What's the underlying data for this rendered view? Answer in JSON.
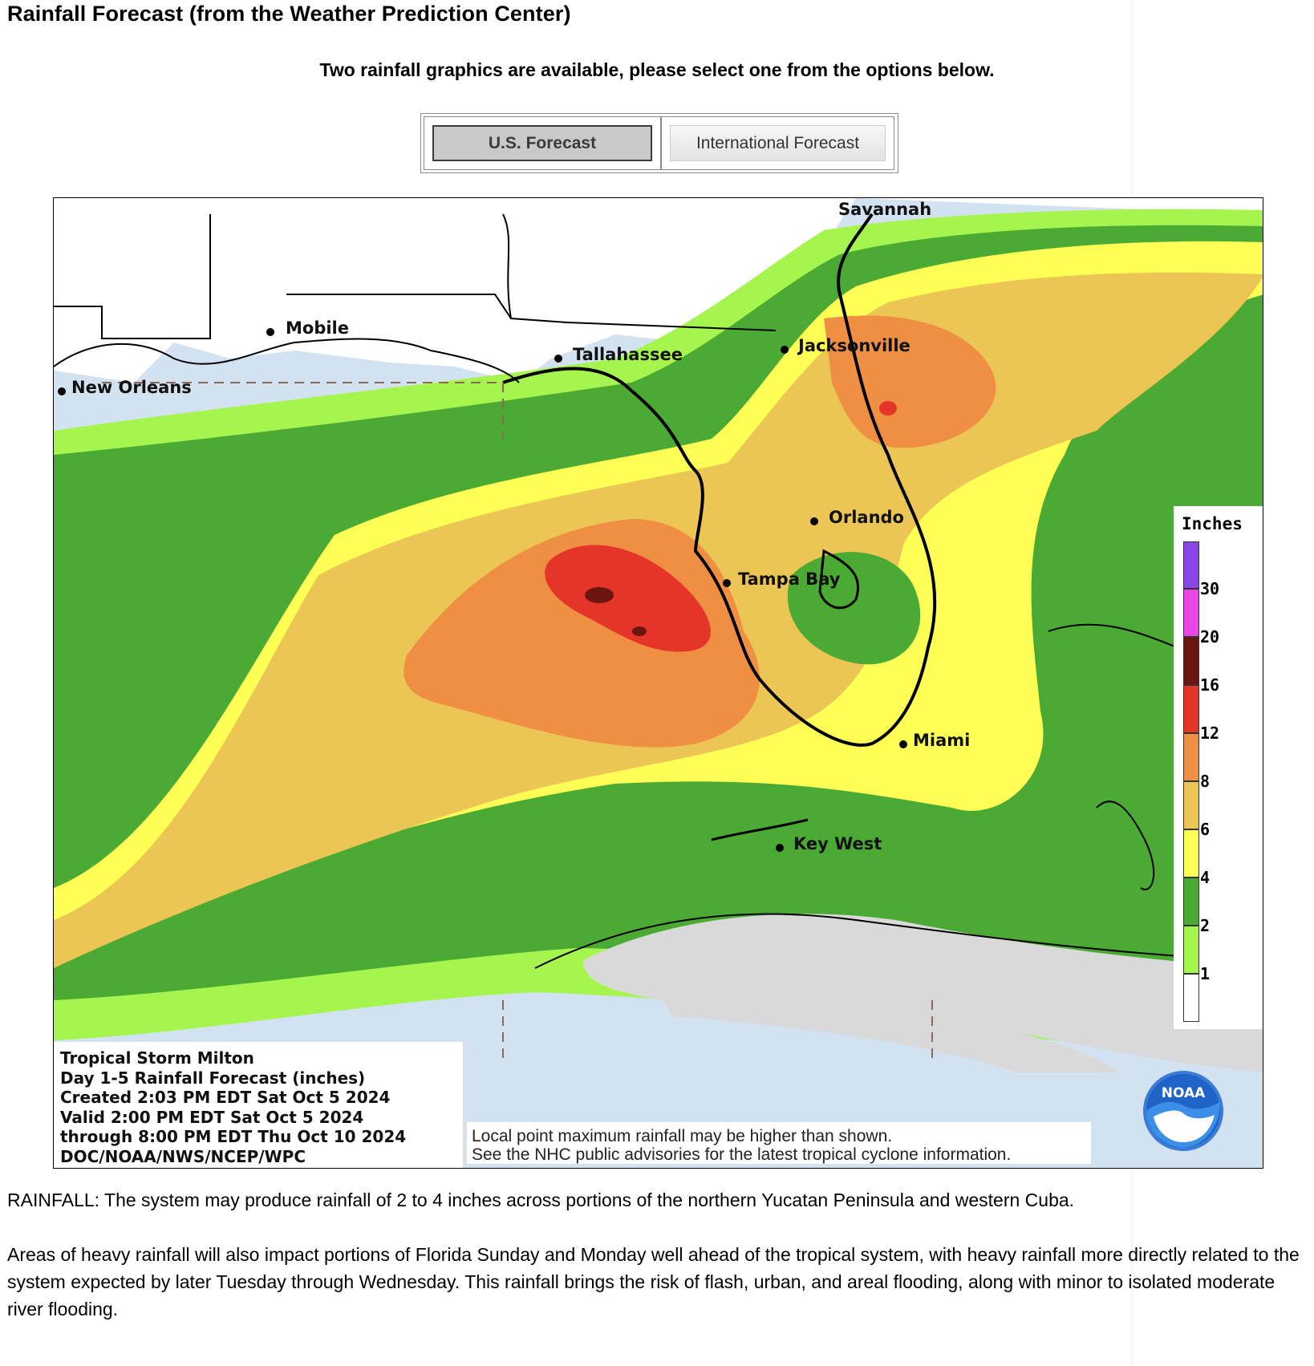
{
  "page": {
    "title": "Rainfall Forecast (from the Weather Prediction Center)",
    "subheading": "Two rainfall graphics are available, please select one from the options below."
  },
  "tabs": [
    {
      "label": "U.S. Forecast",
      "active": true
    },
    {
      "label": "International Forecast",
      "active": false
    }
  ],
  "map": {
    "cities": [
      "Savannah",
      "Mobile",
      "Tallahassee",
      "Jacksonville",
      "New Orleans",
      "Orlando",
      "Tampa Bay",
      "Miami",
      "Key West"
    ],
    "legend": {
      "title": "Inches",
      "ticks": [
        "30",
        "20",
        "16",
        "12",
        "8",
        "6",
        "4",
        "2",
        "1"
      ],
      "colors": [
        "#8b45e6",
        "#ea45e6",
        "#6b1410",
        "#e43528",
        "#ef8f44",
        "#ecc654",
        "#ffff55",
        "#4aaa34",
        "#a6f54e",
        "#ffffff"
      ]
    },
    "info_lines": [
      "Tropical Storm Milton",
      "Day 1-5 Rainfall Forecast (inches)",
      "Created 2:03 PM EDT Sat Oct 5 2024",
      "Valid 2:00 PM EDT Sat Oct 5 2024",
      "through 8:00 PM EDT Thu Oct 10 2024",
      "DOC/NOAA/NWS/NCEP/WPC"
    ],
    "disclaimer_lines": [
      "Local point maximum rainfall may be higher than shown.",
      "See the NHC public advisories for the latest tropical cyclone information."
    ],
    "logo_text": "NOAA"
  },
  "paragraphs": [
    "RAINFALL: The system may produce rainfall of 2 to 4 inches across portions of the northern Yucatan Peninsula and western Cuba.",
    "Areas of heavy rainfall will also impact portions of Florida Sunday and Monday well ahead of the tropical system, with heavy rainfall more directly related to the system expected by later Tuesday through Wednesday. This rainfall brings the risk of flash, urban, and areal flooding, along with minor to isolated moderate river flooding."
  ]
}
